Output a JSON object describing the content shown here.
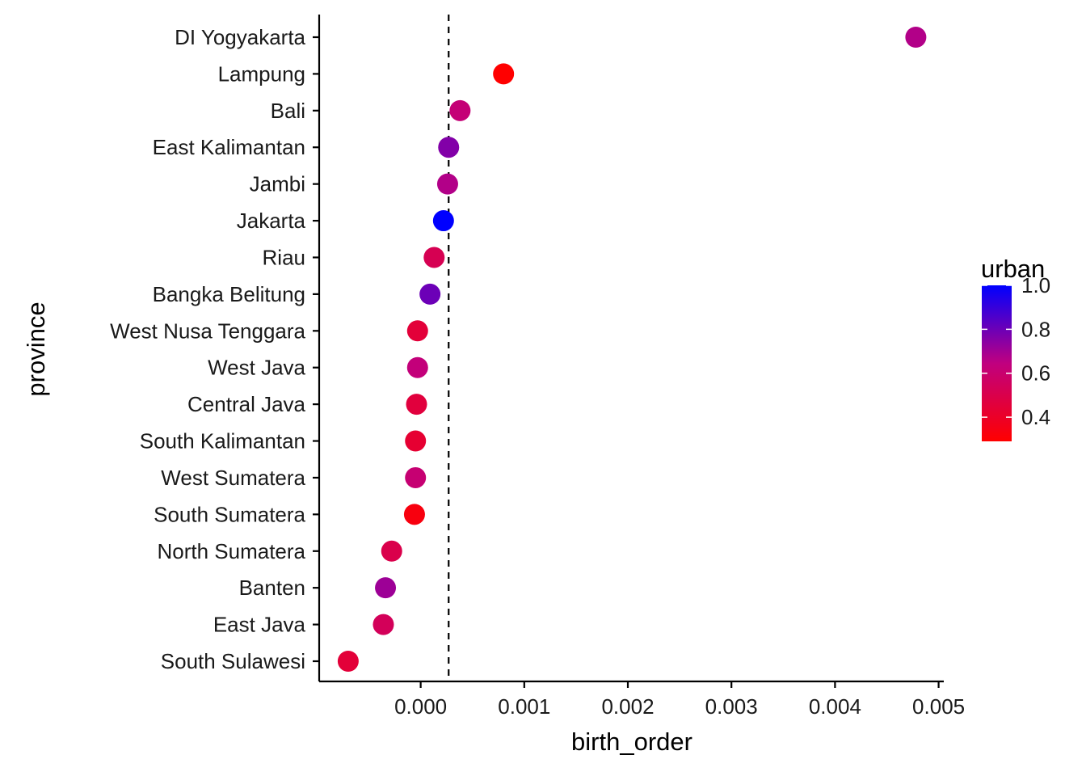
{
  "chart_data": {
    "type": "scatter",
    "xlabel": "birth_order",
    "ylabel": "province",
    "xlim": [
      -0.00098,
      0.00505
    ],
    "x_ticks": [
      0.0,
      0.001,
      0.002,
      0.003,
      0.004,
      0.005
    ],
    "x_tick_labels": [
      "0.000",
      "0.001",
      "0.002",
      "0.003",
      "0.004",
      "0.005"
    ],
    "reference_line": {
      "x": 0.00027,
      "style": "dashed"
    },
    "grid": false,
    "legend": {
      "title": "urban",
      "placement": "right",
      "range": [
        0.29,
        1.0
      ],
      "ticks": [
        0.4,
        0.6,
        0.8,
        1.0
      ],
      "tick_labels": [
        "0.4",
        "0.6",
        "0.8",
        "1.0"
      ],
      "low_color": "#FF0000",
      "high_color": "#0000FF"
    },
    "points": [
      {
        "province": "DI Yogyakarta",
        "birth_order": 0.00478,
        "urban": 0.67
      },
      {
        "province": "Lampung",
        "birth_order": 0.0008,
        "urban": 0.29
      },
      {
        "province": "Bali",
        "birth_order": 0.00038,
        "urban": 0.62
      },
      {
        "province": "East Kalimantan",
        "birth_order": 0.00027,
        "urban": 0.76
      },
      {
        "province": "Jambi",
        "birth_order": 0.00026,
        "urban": 0.67
      },
      {
        "province": "Jakarta",
        "birth_order": 0.00022,
        "urban": 1.0
      },
      {
        "province": "Riau",
        "birth_order": 0.00013,
        "urban": 0.52
      },
      {
        "province": "Bangka Belitung",
        "birth_order": 9e-05,
        "urban": 0.8
      },
      {
        "province": "West Nusa Tenggara",
        "birth_order": -3e-05,
        "urban": 0.45
      },
      {
        "province": "West Java",
        "birth_order": -3e-05,
        "urban": 0.63
      },
      {
        "province": "Central Java",
        "birth_order": -4e-05,
        "urban": 0.46
      },
      {
        "province": "South Kalimantan",
        "birth_order": -5e-05,
        "urban": 0.43
      },
      {
        "province": "West Sumatera",
        "birth_order": -5e-05,
        "urban": 0.61
      },
      {
        "province": "South Sumatera",
        "birth_order": -6e-05,
        "urban": 0.33
      },
      {
        "province": "North Sumatera",
        "birth_order": -0.00028,
        "urban": 0.5
      },
      {
        "province": "Banten",
        "birth_order": -0.00034,
        "urban": 0.71
      },
      {
        "province": "East Java",
        "birth_order": -0.00036,
        "urban": 0.54
      },
      {
        "province": "South Sulawesi",
        "birth_order": -0.0007,
        "urban": 0.45
      }
    ]
  }
}
